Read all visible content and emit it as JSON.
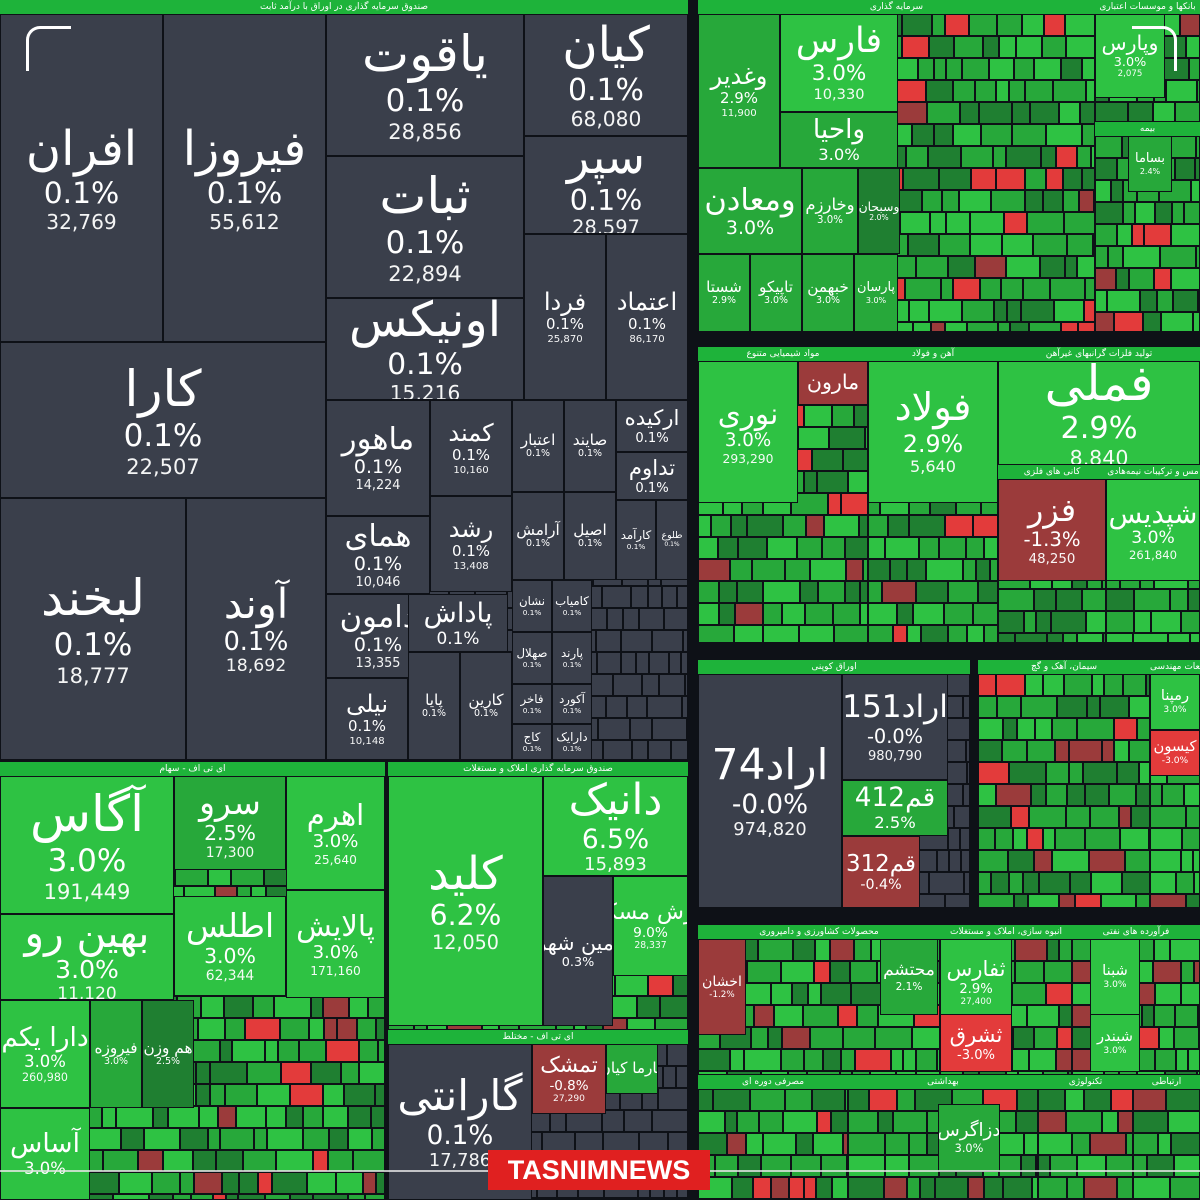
{
  "watermark": "TASNIMNEWS",
  "colors": {
    "gray": "#3a3f4b",
    "green_light": "#2ec243",
    "green": "#27a83a",
    "green_dark": "#1f7f31",
    "red_light": "#e33b3b",
    "red": "#9b3b3b",
    "background": "#0e1117"
  },
  "chart_data": {
    "type": "treemap",
    "sectors": [
      {
        "id": "s1",
        "title": "صندوق سرمایه گذاری در اوراق با درآمد ثابت"
      },
      {
        "id": "s2",
        "title": "سرمایه گذاری"
      },
      {
        "id": "s3",
        "title": "بانکها و موسسات اعتباری"
      },
      {
        "id": "s4",
        "title": "بیمه"
      },
      {
        "id": "s5",
        "title": "مواد شیمیایی متنوع"
      },
      {
        "id": "s6",
        "title": "آهن و فولاد"
      },
      {
        "id": "s7",
        "title": "تولید فلزات گرانبهای غیرآهن"
      },
      {
        "id": "s8",
        "title": "کانی های فلزی"
      },
      {
        "id": "s9",
        "title": "مس و ترکیبات نیمه‌هادی"
      },
      {
        "id": "s10",
        "title": "اوراق کوپنی"
      },
      {
        "id": "s11",
        "title": "سیمان، آهک و گچ"
      },
      {
        "id": "s12",
        "title": "قطعات مهندسی"
      },
      {
        "id": "s13",
        "title": "ای تی اف - سهام"
      },
      {
        "id": "s14",
        "title": "صندوق سرمایه گذاری املاک و مستغلات"
      },
      {
        "id": "s15",
        "title": "ای تی اف - مختلط"
      },
      {
        "id": "s16",
        "title": "محصولات کشاورزی و دامپروری"
      },
      {
        "id": "s17",
        "title": "انبوه سازی، املاک و مستغلات"
      },
      {
        "id": "s18",
        "title": "فرآورده های نفتی"
      },
      {
        "id": "s19",
        "title": "مصرفی دوره ای"
      },
      {
        "id": "s20",
        "title": "بهداشتی"
      },
      {
        "id": "s21",
        "title": "تکنولوژی"
      },
      {
        "id": "s22",
        "title": "ارتباطی"
      }
    ],
    "tiles": [
      {
        "name": "افران",
        "change": "0.1%",
        "price": "32,769",
        "color": "gray",
        "sector": "s1"
      },
      {
        "name": "فیروزا",
        "change": "0.1%",
        "price": "55,612",
        "color": "gray",
        "sector": "s1"
      },
      {
        "name": "یاقوت",
        "change": "0.1%",
        "price": "28,856",
        "color": "gray",
        "sector": "s1"
      },
      {
        "name": "کیان",
        "change": "0.1%",
        "price": "68,080",
        "color": "gray",
        "sector": "s1"
      },
      {
        "name": "ثبات",
        "change": "0.1%",
        "price": "22,894",
        "color": "gray",
        "sector": "s1"
      },
      {
        "name": "سپر",
        "change": "0.1%",
        "price": "28,597",
        "color": "gray",
        "sector": "s1"
      },
      {
        "name": "کارا",
        "change": "0.1%",
        "price": "22,507",
        "color": "gray",
        "sector": "s1"
      },
      {
        "name": "اونیکس",
        "change": "0.1%",
        "price": "15,216",
        "color": "gray",
        "sector": "s1"
      },
      {
        "name": "فردا",
        "change": "0.1%",
        "price": "25,870",
        "color": "gray",
        "sector": "s1"
      },
      {
        "name": "اعتماد",
        "change": "0.1%",
        "price": "86,170",
        "color": "gray",
        "sector": "s1"
      },
      {
        "name": "ماهور",
        "change": "0.1%",
        "price": "14,224",
        "color": "gray",
        "sector": "s1"
      },
      {
        "name": "کمند",
        "change": "0.1%",
        "price": "10,160",
        "color": "gray",
        "sector": "s1"
      },
      {
        "name": "اعتبار",
        "change": "0.1%",
        "price": "",
        "color": "gray",
        "sector": "s1"
      },
      {
        "name": "صایند",
        "change": "0.1%",
        "price": "",
        "color": "gray",
        "sector": "s1"
      },
      {
        "name": "ارکیده",
        "change": "0.1%",
        "price": "",
        "color": "gray",
        "sector": "s1"
      },
      {
        "name": "تداوم",
        "change": "0.1%",
        "price": "",
        "color": "gray",
        "sector": "s1"
      },
      {
        "name": "لبخند",
        "change": "0.1%",
        "price": "18,777",
        "color": "gray",
        "sector": "s1"
      },
      {
        "name": "آوند",
        "change": "0.1%",
        "price": "18,692",
        "color": "gray",
        "sector": "s1"
      },
      {
        "name": "همای",
        "change": "0.1%",
        "price": "10,046",
        "color": "gray",
        "sector": "s1"
      },
      {
        "name": "رشد",
        "change": "0.1%",
        "price": "13,408",
        "color": "gray",
        "sector": "s1"
      },
      {
        "name": "آرامش",
        "change": "0.1%",
        "price": "",
        "color": "gray",
        "sector": "s1"
      },
      {
        "name": "اصیل",
        "change": "0.1%",
        "price": "",
        "color": "gray",
        "sector": "s1"
      },
      {
        "name": "کارآمد",
        "change": "0.1%",
        "price": "",
        "color": "gray",
        "sector": "s1"
      },
      {
        "name": "طلوع",
        "change": "0.1%",
        "price": "",
        "color": "gray",
        "sector": "s1"
      },
      {
        "name": "دامون",
        "change": "0.1%",
        "price": "13,355",
        "color": "gray",
        "sector": "s1"
      },
      {
        "name": "پاداش",
        "change": "0.1%",
        "price": "",
        "color": "gray",
        "sector": "s1"
      },
      {
        "name": "نشان",
        "change": "0.1%",
        "price": "",
        "color": "gray",
        "sector": "s1"
      },
      {
        "name": "کامیاب",
        "change": "0.1%",
        "price": "",
        "color": "gray",
        "sector": "s1"
      },
      {
        "name": "صهلال",
        "change": "0.1%",
        "price": "",
        "color": "gray",
        "sector": "s1"
      },
      {
        "name": "پارند",
        "change": "0.1%",
        "price": "",
        "color": "gray",
        "sector": "s1"
      },
      {
        "name": "نیلی",
        "change": "0.1%",
        "price": "10,148",
        "color": "gray",
        "sector": "s1"
      },
      {
        "name": "پایا",
        "change": "0.1%",
        "price": "",
        "color": "gray",
        "sector": "s1"
      },
      {
        "name": "کارین",
        "change": "0.1%",
        "price": "",
        "color": "gray",
        "sector": "s1"
      },
      {
        "name": "فاخر",
        "change": "0.1%",
        "price": "",
        "color": "gray",
        "sector": "s1"
      },
      {
        "name": "آکورد",
        "change": "0.1%",
        "price": "",
        "color": "gray",
        "sector": "s1"
      },
      {
        "name": "کاج",
        "change": "0.1%",
        "price": "",
        "color": "gray",
        "sector": "s1"
      },
      {
        "name": "دارایک",
        "change": "0.1%",
        "price": "",
        "color": "gray",
        "sector": "s1"
      },
      {
        "name": "وغدیر",
        "change": "2.9%",
        "price": "11,900",
        "color": "green",
        "sector": "s2"
      },
      {
        "name": "فارس",
        "change": "3.0%",
        "price": "10,330",
        "color": "green_light",
        "sector": "s2"
      },
      {
        "name": "واحیا",
        "change": "3.0%",
        "price": "",
        "color": "green",
        "sector": "s2"
      },
      {
        "name": "ومعادن",
        "change": "3.0%",
        "price": "",
        "color": "green",
        "sector": "s2"
      },
      {
        "name": "وخارزم",
        "change": "3.0%",
        "price": "",
        "color": "green",
        "sector": "s2"
      },
      {
        "name": "وسبحان",
        "change": "2.0%",
        "price": "",
        "color": "green_dark",
        "sector": "s2"
      },
      {
        "name": "شستا",
        "change": "2.9%",
        "price": "",
        "color": "green",
        "sector": "s2"
      },
      {
        "name": "تاپیکو",
        "change": "3.0%",
        "price": "",
        "color": "green",
        "sector": "s2"
      },
      {
        "name": "خبهمن",
        "change": "3.0%",
        "price": "",
        "color": "green",
        "sector": "s2"
      },
      {
        "name": "پارسان",
        "change": "3.0%",
        "price": "",
        "color": "green",
        "sector": "s2"
      },
      {
        "name": "وپارس",
        "change": "3.0%",
        "price": "2,075",
        "color": "green_light",
        "sector": "s3"
      },
      {
        "name": "بساما",
        "change": "2.4%",
        "price": "",
        "color": "green",
        "sector": "s4"
      },
      {
        "name": "نوری",
        "change": "3.0%",
        "price": "293,290",
        "color": "green_light",
        "sector": "s5"
      },
      {
        "name": "مارون",
        "change": "",
        "price": "",
        "color": "red",
        "sector": "s5"
      },
      {
        "name": "فولاد",
        "change": "2.9%",
        "price": "5,640",
        "color": "green_light",
        "sector": "s6"
      },
      {
        "name": "فملی",
        "change": "2.9%",
        "price": "8,840",
        "color": "green_light",
        "sector": "s7"
      },
      {
        "name": "فزر",
        "change": "-1.3%",
        "price": "48,250",
        "color": "red",
        "sector": "s8"
      },
      {
        "name": "شپدیس",
        "change": "3.0%",
        "price": "261,840",
        "color": "green_light",
        "sector": "s9"
      },
      {
        "name": "اراد74",
        "change": "-0.0%",
        "price": "974,820",
        "color": "gray",
        "sector": "s10"
      },
      {
        "name": "اراد151",
        "change": "-0.0%",
        "price": "980,790",
        "color": "gray",
        "sector": "s10"
      },
      {
        "name": "قم412",
        "change": "2.5%",
        "price": "",
        "color": "green",
        "sector": "s10"
      },
      {
        "name": "قم312",
        "change": "-0.4%",
        "price": "",
        "color": "red",
        "sector": "s10"
      },
      {
        "name": "رمپنا",
        "change": "3.0%",
        "price": "",
        "color": "green_light",
        "sector": "s12"
      },
      {
        "name": "کیسون",
        "change": "-3.0%",
        "price": "",
        "color": "red_light",
        "sector": "s12"
      },
      {
        "name": "آگاس",
        "change": "3.0%",
        "price": "191,449",
        "color": "green_light",
        "sector": "s13"
      },
      {
        "name": "سرو",
        "change": "2.5%",
        "price": "17,300",
        "color": "green",
        "sector": "s13"
      },
      {
        "name": "اهرم",
        "change": "3.0%",
        "price": "25,640",
        "color": "green_light",
        "sector": "s13"
      },
      {
        "name": "بهین رو",
        "change": "3.0%",
        "price": "11,120",
        "color": "green_light",
        "sector": "s13"
      },
      {
        "name": "اطلس",
        "change": "3.0%",
        "price": "62,344",
        "color": "green_light",
        "sector": "s13"
      },
      {
        "name": "پالایش",
        "change": "3.0%",
        "price": "171,160",
        "color": "green_light",
        "sector": "s13"
      },
      {
        "name": "دارا یکم",
        "change": "3.0%",
        "price": "260,980",
        "color": "green_light",
        "sector": "s13"
      },
      {
        "name": "فیروزه",
        "change": "3.0%",
        "price": "",
        "color": "green",
        "sector": "s13"
      },
      {
        "name": "هم وزن",
        "change": "2.5%",
        "price": "",
        "color": "green_dark",
        "sector": "s13"
      },
      {
        "name": "آساس",
        "change": "3.0%",
        "price": "",
        "color": "green_light",
        "sector": "s13"
      },
      {
        "name": "کلید",
        "change": "6.2%",
        "price": "12,050",
        "color": "green_light",
        "sector": "s14"
      },
      {
        "name": "دانیک",
        "change": "6.5%",
        "price": "15,893",
        "color": "green_light",
        "sector": "s14"
      },
      {
        "name": "امین شهر",
        "change": "0.3%",
        "price": "",
        "color": "gray",
        "sector": "s14"
      },
      {
        "name": "ارزش مسکن",
        "change": "9.0%",
        "price": "28,337",
        "color": "green_light",
        "sector": "s14"
      },
      {
        "name": "گارانتی",
        "change": "0.1%",
        "price": "17,786",
        "color": "gray",
        "sector": "s15"
      },
      {
        "name": "تمشک",
        "change": "-0.8%",
        "price": "27,290",
        "color": "red",
        "sector": "s15"
      },
      {
        "name": "فارما کیان",
        "change": "",
        "price": "",
        "color": "green",
        "sector": "s15"
      },
      {
        "name": "اخشان",
        "change": "-1.2%",
        "price": "",
        "color": "red",
        "sector": "s16"
      },
      {
        "name": "محتشم",
        "change": "2.1%",
        "price": "",
        "color": "green",
        "sector": "s17"
      },
      {
        "name": "ثفارس",
        "change": "2.9%",
        "price": "27,400",
        "color": "green_light",
        "sector": "s17"
      },
      {
        "name": "ثشرق",
        "change": "-3.0%",
        "price": "",
        "color": "red_light",
        "sector": "s17"
      },
      {
        "name": "شبنا",
        "change": "3.0%",
        "price": "",
        "color": "green_light",
        "sector": "s18"
      },
      {
        "name": "شبندر",
        "change": "3.0%",
        "price": "",
        "color": "green_light",
        "sector": "s18"
      },
      {
        "name": "دزاگرس",
        "change": "3.0%",
        "price": "",
        "color": "green",
        "sector": "s20"
      }
    ]
  }
}
